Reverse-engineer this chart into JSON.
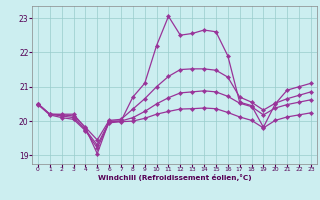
{
  "xlabel": "Windchill (Refroidissement éolien,°C)",
  "background_color": "#cceef0",
  "line_color": "#993399",
  "xlim": [
    -0.5,
    23.5
  ],
  "ylim": [
    18.75,
    23.35
  ],
  "yticks": [
    19,
    20,
    21,
    22,
    23
  ],
  "xticks": [
    0,
    1,
    2,
    3,
    4,
    5,
    6,
    7,
    8,
    9,
    10,
    11,
    12,
    13,
    14,
    15,
    16,
    17,
    18,
    19,
    20,
    21,
    22,
    23
  ],
  "lines": [
    {
      "x": [
        0,
        1,
        2,
        3,
        4,
        5,
        6,
        7,
        8,
        9,
        10,
        11,
        12,
        13,
        14,
        15,
        16,
        17,
        18,
        19,
        20,
        21,
        22,
        23
      ],
      "y": [
        20.5,
        20.2,
        20.2,
        20.2,
        19.8,
        19.05,
        20.0,
        20.0,
        20.7,
        21.1,
        22.2,
        23.05,
        22.5,
        22.55,
        22.65,
        22.6,
        21.9,
        20.55,
        20.45,
        19.82,
        20.5,
        20.9,
        21.0,
        21.1
      ]
    },
    {
      "x": [
        0,
        1,
        2,
        3,
        4,
        5,
        6,
        7,
        8,
        9,
        10,
        11,
        12,
        13,
        14,
        15,
        16,
        17,
        18,
        19,
        20,
        21,
        22,
        23
      ],
      "y": [
        20.5,
        20.2,
        20.18,
        20.15,
        19.82,
        19.45,
        20.02,
        20.05,
        20.35,
        20.65,
        21.0,
        21.3,
        21.5,
        21.52,
        21.52,
        21.48,
        21.28,
        20.7,
        20.55,
        20.32,
        20.52,
        20.65,
        20.75,
        20.85
      ]
    },
    {
      "x": [
        0,
        1,
        2,
        3,
        4,
        5,
        6,
        7,
        8,
        9,
        10,
        11,
        12,
        13,
        14,
        15,
        16,
        17,
        18,
        19,
        20,
        21,
        22,
        23
      ],
      "y": [
        20.5,
        20.2,
        20.15,
        20.1,
        19.75,
        19.3,
        19.98,
        20.0,
        20.1,
        20.28,
        20.5,
        20.68,
        20.82,
        20.85,
        20.88,
        20.85,
        20.72,
        20.52,
        20.42,
        20.18,
        20.38,
        20.48,
        20.55,
        20.62
      ]
    },
    {
      "x": [
        0,
        1,
        2,
        3,
        4,
        5,
        6,
        7,
        8,
        9,
        10,
        11,
        12,
        13,
        14,
        15,
        16,
        17,
        18,
        19,
        20,
        21,
        22,
        23
      ],
      "y": [
        20.48,
        20.18,
        20.1,
        20.05,
        19.72,
        19.22,
        19.95,
        19.98,
        20.0,
        20.08,
        20.2,
        20.28,
        20.35,
        20.36,
        20.38,
        20.36,
        20.25,
        20.12,
        20.02,
        19.8,
        20.02,
        20.12,
        20.18,
        20.24
      ]
    }
  ]
}
